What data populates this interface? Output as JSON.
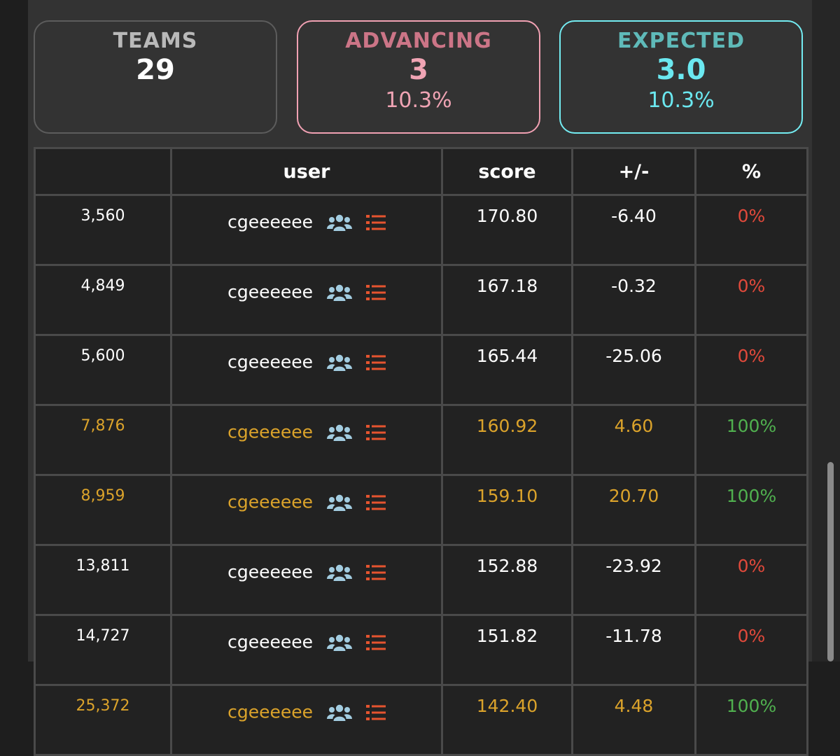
{
  "colors": {
    "advancing": "#dba32b",
    "not_advancing": "#ffffff",
    "pct_zero": "#e0493b",
    "pct_full": "#50b04f",
    "team_icon": "#a2cce0",
    "list_icon": "#e5542f"
  },
  "stats": {
    "teams": {
      "label": "TEAMS",
      "value": "29"
    },
    "advancing": {
      "label": "ADVANCING",
      "value": "3",
      "pct": "10.3%"
    },
    "expected": {
      "label": "EXPECTED",
      "value": "3.0",
      "pct": "10.3%"
    }
  },
  "table": {
    "headers": {
      "rank": "",
      "user": "user",
      "score": "score",
      "diff": "+/-",
      "pct": "%"
    },
    "rows": [
      {
        "rank": "3,560",
        "user": "cgeeeeee",
        "score": "170.80",
        "diff": "-6.40",
        "pct": "0%",
        "advancing": false,
        "team_icon": "team-icon",
        "list_icon": "list-icon"
      },
      {
        "rank": "4,849",
        "user": "cgeeeeee",
        "score": "167.18",
        "diff": "-0.32",
        "pct": "0%",
        "advancing": false,
        "team_icon": "team-icon",
        "list_icon": "list-icon"
      },
      {
        "rank": "5,600",
        "user": "cgeeeeee",
        "score": "165.44",
        "diff": "-25.06",
        "pct": "0%",
        "advancing": false,
        "team_icon": "team-icon",
        "list_icon": "list-icon"
      },
      {
        "rank": "7,876",
        "user": "cgeeeeee",
        "score": "160.92",
        "diff": "4.60",
        "pct": "100%",
        "advancing": true,
        "team_icon": "team-icon",
        "list_icon": "list-icon"
      },
      {
        "rank": "8,959",
        "user": "cgeeeeee",
        "score": "159.10",
        "diff": "20.70",
        "pct": "100%",
        "advancing": true,
        "team_icon": "team-icon",
        "list_icon": "list-icon"
      },
      {
        "rank": "13,811",
        "user": "cgeeeeee",
        "score": "152.88",
        "diff": "-23.92",
        "pct": "0%",
        "advancing": false,
        "team_icon": "team-icon",
        "list_icon": "list-icon"
      },
      {
        "rank": "14,727",
        "user": "cgeeeeee",
        "score": "151.82",
        "diff": "-11.78",
        "pct": "0%",
        "advancing": false,
        "team_icon": "team-icon",
        "list_icon": "list-icon"
      },
      {
        "rank": "25,372",
        "user": "cgeeeeee",
        "score": "142.40",
        "diff": "4.48",
        "pct": "100%",
        "advancing": true,
        "team_icon": "team-icon",
        "list_icon": "list-icon"
      }
    ]
  }
}
